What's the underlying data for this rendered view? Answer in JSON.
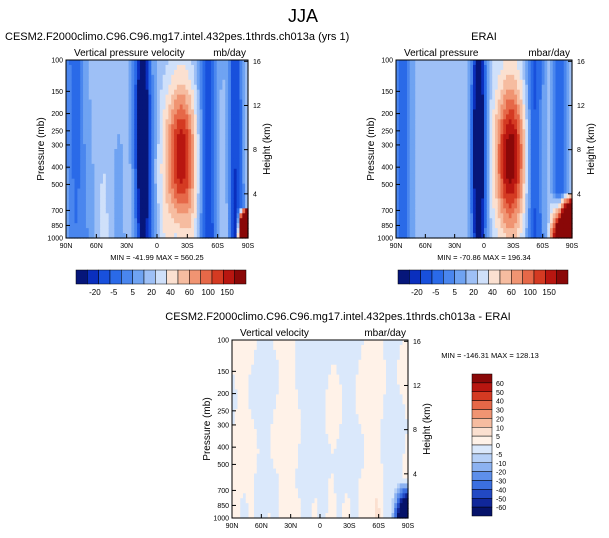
{
  "figure": {
    "title": "JJA"
  },
  "chart_data": [
    {
      "type": "heatmap",
      "title": "CESM2.F2000climo.C96.C96.mg17.intel.432pes.1thrds.ch013a (yrs 1)",
      "left_label": "Vertical pressure velocity",
      "right_label": "mb/day",
      "xlabel": "",
      "ylabel": "Pressure (mb)",
      "y2label": "Height (km)",
      "x_ticks": [
        "90N",
        "60N",
        "30N",
        "0",
        "30S",
        "60S",
        "90S"
      ],
      "y_ticks": [
        "100",
        "150",
        "200",
        "250",
        "300",
        "400",
        "500",
        "700",
        "850",
        "1000"
      ],
      "y2_ticks": [
        "4",
        "8",
        "12",
        "16"
      ],
      "stats": "MIN = -41.99   MAX = 560.25",
      "colorbar_labels": [
        "-20",
        "-5",
        "5",
        "20",
        "40",
        "60",
        "100",
        "150"
      ]
    },
    {
      "type": "heatmap",
      "title": "ERAI",
      "left_label": "Vertical pressure",
      "right_label": "mbar/day",
      "xlabel": "",
      "ylabel": "Pressure (mb)",
      "y2label": "Height (km)",
      "x_ticks": [
        "90N",
        "60N",
        "30N",
        "0",
        "30S",
        "60S",
        "90S"
      ],
      "y_ticks": [
        "100",
        "150",
        "200",
        "250",
        "300",
        "400",
        "500",
        "700",
        "850",
        "1000"
      ],
      "y2_ticks": [
        "4",
        "8",
        "12",
        "16"
      ],
      "stats": "MIN = -70.86   MAX = 196.34",
      "colorbar_labels": [
        "-20",
        "-5",
        "5",
        "20",
        "40",
        "60",
        "100",
        "150"
      ]
    },
    {
      "type": "heatmap",
      "title": "CESM2.F2000climo.C96.C96.mg17.intel.432pes.1thrds.ch013a - ERAI",
      "left_label": "Vertical velocity",
      "right_label": "mbar/day",
      "xlabel": "",
      "ylabel": "Pressure (mb)",
      "y2label": "Height (km)",
      "x_ticks": [
        "90N",
        "60N",
        "30N",
        "0",
        "30S",
        "60S",
        "90S"
      ],
      "y_ticks": [
        "100",
        "150",
        "200",
        "250",
        "300",
        "400",
        "500",
        "700",
        "850",
        "1000"
      ],
      "y2_ticks": [
        "4",
        "8",
        "12",
        "16"
      ],
      "stats": "MIN = -146.31   MAX = 128.13",
      "colorbar_labels": [
        "60",
        "50",
        "40",
        "30",
        "20",
        "10",
        "5",
        "0",
        "-5",
        "-10",
        "-20",
        "-30",
        "-40",
        "-50",
        "-60"
      ]
    }
  ],
  "colors": {
    "blues": [
      "#06167a",
      "#0a2fbe",
      "#1850dc",
      "#2a6ae8",
      "#4a86ee",
      "#6fa3f2",
      "#9ec0f6",
      "#cfe0fa"
    ],
    "reds": [
      "#fbe0d0",
      "#f6bca0",
      "#f09472",
      "#e66848",
      "#d43a22",
      "#b81610",
      "#8a0808"
    ],
    "diff": [
      "#8a0808",
      "#b81610",
      "#d43a22",
      "#e66848",
      "#f09472",
      "#f6bca0",
      "#fbe0d0",
      "#fff2e8",
      "#dae8fb",
      "#b6d0f7",
      "#8cb2f1",
      "#5e8fea",
      "#3b6fe0",
      "#2249c4",
      "#10279a",
      "#06136a"
    ]
  }
}
